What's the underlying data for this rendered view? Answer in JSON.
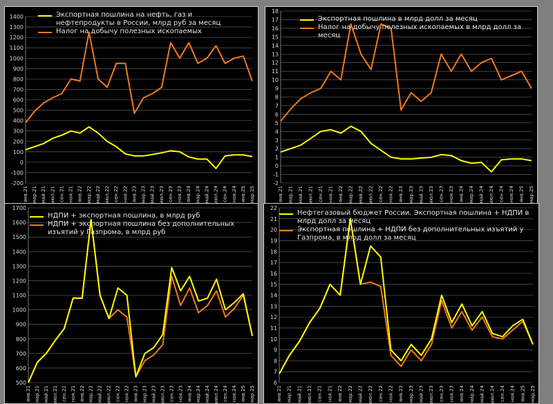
{
  "colors": {
    "yellow": "#ffff00",
    "orange": "#f07a1e",
    "grid": "#6e6e6e",
    "axis": "#9a9a9a"
  },
  "chart_data": [
    {
      "type": "line",
      "x": [
        "янв.21",
        "мар.21",
        "май.21",
        "июл.21",
        "сен.21",
        "ноя.21",
        "янв.22",
        "мар.22",
        "май.22",
        "июл.22",
        "сен.22",
        "ноя.22",
        "янв.23",
        "мар.23",
        "май.23",
        "июл.23",
        "сен.23",
        "ноя.23",
        "янв.24",
        "мар.24",
        "май.24",
        "июл.24",
        "сен.24",
        "ноя.24",
        "янв.25",
        "мар.25"
      ],
      "ylim": [
        -200,
        1400
      ],
      "yticks": [
        -200,
        -100,
        0,
        100,
        200,
        300,
        400,
        500,
        600,
        700,
        800,
        900,
        1000,
        1100,
        1200,
        1300,
        1400
      ],
      "grid": true,
      "legend": "top-left",
      "series": [
        {
          "name": "Экспортная пошлина на нефть, газ и нефтепродукты в России, млрд руб за месяц",
          "color": "yellow",
          "values": [
            120,
            150,
            180,
            230,
            260,
            300,
            280,
            340,
            280,
            200,
            150,
            80,
            60,
            60,
            75,
            90,
            110,
            100,
            50,
            30,
            30,
            -60,
            60,
            70,
            70,
            55
          ]
        },
        {
          "name": "Налог на добычу полезных ископаемых",
          "color": "orange",
          "values": [
            380,
            490,
            570,
            620,
            660,
            800,
            780,
            1250,
            800,
            720,
            950,
            950,
            470,
            620,
            660,
            720,
            1150,
            1000,
            1150,
            950,
            1000,
            1120,
            950,
            1000,
            1020,
            780
          ]
        }
      ]
    },
    {
      "type": "line",
      "x": [
        "янв.21",
        "мар.21",
        "май.21",
        "июл.21",
        "сен.21",
        "ноя.21",
        "янв.22",
        "мар.22",
        "май.22",
        "июл.22",
        "сен.22",
        "ноя.22",
        "янв.23",
        "мар.23",
        "май.23",
        "июл.23",
        "сен.23",
        "ноя.23",
        "янв.24",
        "мар.24",
        "май.24",
        "июл.24",
        "сен.24",
        "ноя.24",
        "янв.25",
        "мар.25"
      ],
      "ylim": [
        -2,
        18
      ],
      "yticks": [
        -2,
        -1,
        0,
        1,
        2,
        3,
        4,
        5,
        6,
        7,
        8,
        9,
        10,
        11,
        12,
        13,
        14,
        15,
        16,
        17,
        18
      ],
      "grid": true,
      "legend": "top-left",
      "series": [
        {
          "name": "Экспортная пошлина в млрд долл за месяц",
          "color": "yellow",
          "values": [
            1.6,
            2.0,
            2.4,
            3.2,
            4.0,
            4.2,
            3.8,
            4.6,
            4.0,
            2.6,
            1.8,
            1.0,
            0.8,
            0.8,
            0.9,
            1.0,
            1.3,
            1.2,
            0.6,
            0.3,
            0.4,
            -0.7,
            0.7,
            0.8,
            0.8,
            0.6
          ]
        },
        {
          "name": "Налог на добычу полезных ископаемых в млрд долл за месяц",
          "color": "orange",
          "values": [
            5.2,
            6.6,
            7.8,
            8.5,
            9.0,
            11.0,
            10.0,
            16.5,
            13.0,
            11.2,
            16.5,
            16.0,
            6.5,
            8.5,
            7.5,
            8.5,
            13.0,
            11.0,
            13.0,
            11.0,
            12.0,
            12.5,
            10.0,
            10.5,
            11.0,
            9.0
          ]
        }
      ]
    },
    {
      "type": "line",
      "x": [
        "янв.21",
        "мар.21",
        "май.21",
        "июл.21",
        "сен.21",
        "ноя.21",
        "янв.22",
        "мар.22",
        "май.22",
        "июл.22",
        "сен.22",
        "ноя.22",
        "янв.23",
        "мар.23",
        "май.23",
        "июл.23",
        "сен.23",
        "ноя.23",
        "янв.24",
        "мар.24",
        "май.24",
        "июл.24",
        "сен.24",
        "ноя.24",
        "янв.25",
        "мар.25"
      ],
      "ylim": [
        500,
        1700
      ],
      "yticks": [
        500,
        600,
        700,
        800,
        900,
        1000,
        1100,
        1200,
        1300,
        1400,
        1500,
        1600,
        1700
      ],
      "grid": true,
      "legend": "top-left",
      "series": [
        {
          "name": "НДПИ + экспортная пошлина, в млрд руб",
          "color": "yellow",
          "values": [
            500,
            640,
            700,
            790,
            870,
            1080,
            1080,
            1620,
            1100,
            940,
            1150,
            1100,
            540,
            700,
            740,
            830,
            1290,
            1130,
            1230,
            1060,
            1080,
            1210,
            1000,
            1050,
            1110,
            820
          ]
        },
        {
          "name": "НДПИ + экспортная пошлина без дополнительных изъятий у Газпрома, в млрд руб",
          "color": "orange",
          "values": [
            500,
            640,
            700,
            790,
            870,
            1080,
            1080,
            1620,
            1100,
            940,
            1000,
            950,
            540,
            650,
            690,
            760,
            1230,
            1030,
            1150,
            980,
            1030,
            1130,
            950,
            1010,
            1100,
            820
          ]
        }
      ]
    },
    {
      "type": "line",
      "x": [
        "янв.21",
        "мар.21",
        "май.21",
        "июл.21",
        "сен.21",
        "ноя.21",
        "янв.22",
        "мар.22",
        "май.22",
        "июл.22",
        "сен.22",
        "ноя.22",
        "янв.23",
        "мар.23",
        "май.23",
        "июл.23",
        "сен.23",
        "ноя.23",
        "янв.24",
        "мар.24",
        "май.24",
        "июл.24",
        "сен.24",
        "ноя.24",
        "янв.25",
        "мар.25"
      ],
      "ylim": [
        6,
        22
      ],
      "yticks": [
        6,
        7,
        8,
        9,
        10,
        11,
        12,
        13,
        14,
        15,
        16,
        17,
        18,
        19,
        20,
        21,
        22
      ],
      "grid": true,
      "legend": "top-left",
      "series": [
        {
          "name": "Нефтегазовый бюджет России. Экспортная пошлина + НДПИ в млрд долл за месяц",
          "color": "yellow",
          "values": [
            6.8,
            8.5,
            9.8,
            11.5,
            12.8,
            15.0,
            14.0,
            21.0,
            15.0,
            18.5,
            17.5,
            9.0,
            8.0,
            9.5,
            8.5,
            10.0,
            14.0,
            11.5,
            13.2,
            11.2,
            12.5,
            10.5,
            10.2,
            11.2,
            11.8,
            9.5
          ]
        },
        {
          "name": "Экспортная пошлина + НДПИ без дополнительных изъятий у Газпрома, в млрд долл за месяц",
          "color": "orange",
          "values": [
            6.8,
            8.5,
            9.8,
            11.5,
            12.8,
            15.0,
            14.0,
            21.0,
            15.0,
            15.2,
            14.8,
            8.5,
            7.5,
            9.0,
            8.0,
            9.5,
            13.5,
            11.0,
            12.5,
            10.8,
            12.0,
            10.2,
            10.0,
            10.8,
            11.6,
            9.5
          ]
        }
      ]
    }
  ]
}
